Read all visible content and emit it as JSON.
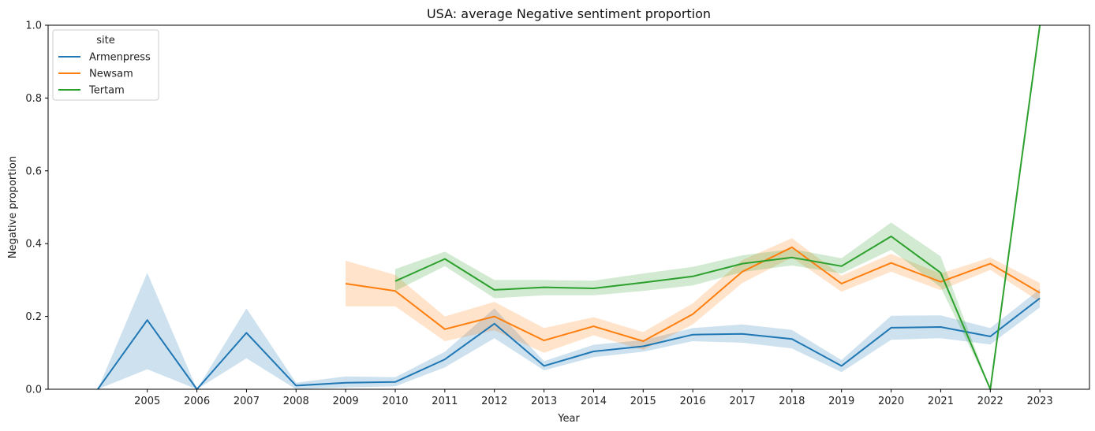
{
  "chart_data": {
    "type": "line",
    "title": "USA: average Negative sentiment proportion",
    "xlabel": "Year",
    "ylabel": "Negative proportion",
    "xlim": [
      2003,
      2024
    ],
    "ylim": [
      0,
      1.0
    ],
    "x_ticks": [
      "2005",
      "2006",
      "2007",
      "2008",
      "2009",
      "2010",
      "2011",
      "2012",
      "2013",
      "2014",
      "2015",
      "2016",
      "2017",
      "2018",
      "2019",
      "2020",
      "2021",
      "2022",
      "2023"
    ],
    "y_ticks": [
      "0.0",
      "0.2",
      "0.4",
      "0.6",
      "0.8",
      "1.0"
    ],
    "legend": {
      "title": "site",
      "position": "top-left"
    },
    "grid": false,
    "series": [
      {
        "name": "Armenpress",
        "color": "#1f77b4",
        "points": [
          {
            "x": 2004,
            "y": 0.0,
            "lo": 0.0,
            "hi": 0.0
          },
          {
            "x": 2005,
            "y": 0.19,
            "lo": 0.055,
            "hi": 0.32
          },
          {
            "x": 2006,
            "y": 0.0,
            "lo": 0.0,
            "hi": 0.0
          },
          {
            "x": 2007,
            "y": 0.155,
            "lo": 0.085,
            "hi": 0.222
          },
          {
            "x": 2008,
            "y": 0.01,
            "lo": 0.0,
            "hi": 0.018
          },
          {
            "x": 2009,
            "y": 0.018,
            "lo": 0.005,
            "hi": 0.035
          },
          {
            "x": 2010,
            "y": 0.02,
            "lo": 0.008,
            "hi": 0.033
          },
          {
            "x": 2011,
            "y": 0.082,
            "lo": 0.06,
            "hi": 0.103
          },
          {
            "x": 2012,
            "y": 0.18,
            "lo": 0.14,
            "hi": 0.222
          },
          {
            "x": 2013,
            "y": 0.064,
            "lo": 0.052,
            "hi": 0.077
          },
          {
            "x": 2014,
            "y": 0.104,
            "lo": 0.088,
            "hi": 0.122
          },
          {
            "x": 2015,
            "y": 0.118,
            "lo": 0.103,
            "hi": 0.135
          },
          {
            "x": 2016,
            "y": 0.15,
            "lo": 0.132,
            "hi": 0.168
          },
          {
            "x": 2017,
            "y": 0.152,
            "lo": 0.128,
            "hi": 0.178
          },
          {
            "x": 2018,
            "y": 0.138,
            "lo": 0.112,
            "hi": 0.163
          },
          {
            "x": 2019,
            "y": 0.064,
            "lo": 0.047,
            "hi": 0.08
          },
          {
            "x": 2020,
            "y": 0.169,
            "lo": 0.136,
            "hi": 0.202
          },
          {
            "x": 2021,
            "y": 0.171,
            "lo": 0.14,
            "hi": 0.203
          },
          {
            "x": 2022,
            "y": 0.145,
            "lo": 0.123,
            "hi": 0.168
          },
          {
            "x": 2023,
            "y": 0.25,
            "lo": 0.225,
            "hi": 0.275
          }
        ]
      },
      {
        "name": "Newsam",
        "color": "#ff7f0e",
        "points": [
          {
            "x": 2009,
            "y": 0.29,
            "lo": 0.228,
            "hi": 0.353
          },
          {
            "x": 2010,
            "y": 0.27,
            "lo": 0.228,
            "hi": 0.314
          },
          {
            "x": 2011,
            "y": 0.165,
            "lo": 0.132,
            "hi": 0.2
          },
          {
            "x": 2012,
            "y": 0.2,
            "lo": 0.162,
            "hi": 0.24
          },
          {
            "x": 2013,
            "y": 0.134,
            "lo": 0.1,
            "hi": 0.168
          },
          {
            "x": 2014,
            "y": 0.173,
            "lo": 0.148,
            "hi": 0.198
          },
          {
            "x": 2015,
            "y": 0.132,
            "lo": 0.108,
            "hi": 0.157
          },
          {
            "x": 2016,
            "y": 0.206,
            "lo": 0.178,
            "hi": 0.236
          },
          {
            "x": 2017,
            "y": 0.323,
            "lo": 0.292,
            "hi": 0.355
          },
          {
            "x": 2018,
            "y": 0.39,
            "lo": 0.362,
            "hi": 0.415
          },
          {
            "x": 2019,
            "y": 0.29,
            "lo": 0.268,
            "hi": 0.312
          },
          {
            "x": 2020,
            "y": 0.347,
            "lo": 0.323,
            "hi": 0.372
          },
          {
            "x": 2021,
            "y": 0.295,
            "lo": 0.272,
            "hi": 0.318
          },
          {
            "x": 2022,
            "y": 0.345,
            "lo": 0.328,
            "hi": 0.362
          },
          {
            "x": 2023,
            "y": 0.265,
            "lo": 0.24,
            "hi": 0.292
          }
        ]
      },
      {
        "name": "Tertam",
        "color": "#2ca02c",
        "points": [
          {
            "x": 2010,
            "y": 0.297,
            "lo": 0.27,
            "hi": 0.33
          },
          {
            "x": 2011,
            "y": 0.358,
            "lo": 0.338,
            "hi": 0.378
          },
          {
            "x": 2012,
            "y": 0.273,
            "lo": 0.25,
            "hi": 0.3
          },
          {
            "x": 2013,
            "y": 0.28,
            "lo": 0.258,
            "hi": 0.3
          },
          {
            "x": 2014,
            "y": 0.277,
            "lo": 0.258,
            "hi": 0.298
          },
          {
            "x": 2015,
            "y": 0.293,
            "lo": 0.27,
            "hi": 0.318
          },
          {
            "x": 2016,
            "y": 0.31,
            "lo": 0.285,
            "hi": 0.336
          },
          {
            "x": 2017,
            "y": 0.345,
            "lo": 0.322,
            "hi": 0.368
          },
          {
            "x": 2018,
            "y": 0.362,
            "lo": 0.34,
            "hi": 0.385
          },
          {
            "x": 2019,
            "y": 0.338,
            "lo": 0.318,
            "hi": 0.36
          },
          {
            "x": 2020,
            "y": 0.42,
            "lo": 0.383,
            "hi": 0.458
          },
          {
            "x": 2021,
            "y": 0.32,
            "lo": 0.28,
            "hi": 0.365
          },
          {
            "x": 2022,
            "y": 0.0,
            "lo": 0.0,
            "hi": 0.0
          },
          {
            "x": 2023,
            "y": 1.0,
            "lo": 1.0,
            "hi": 1.0
          }
        ]
      }
    ]
  }
}
